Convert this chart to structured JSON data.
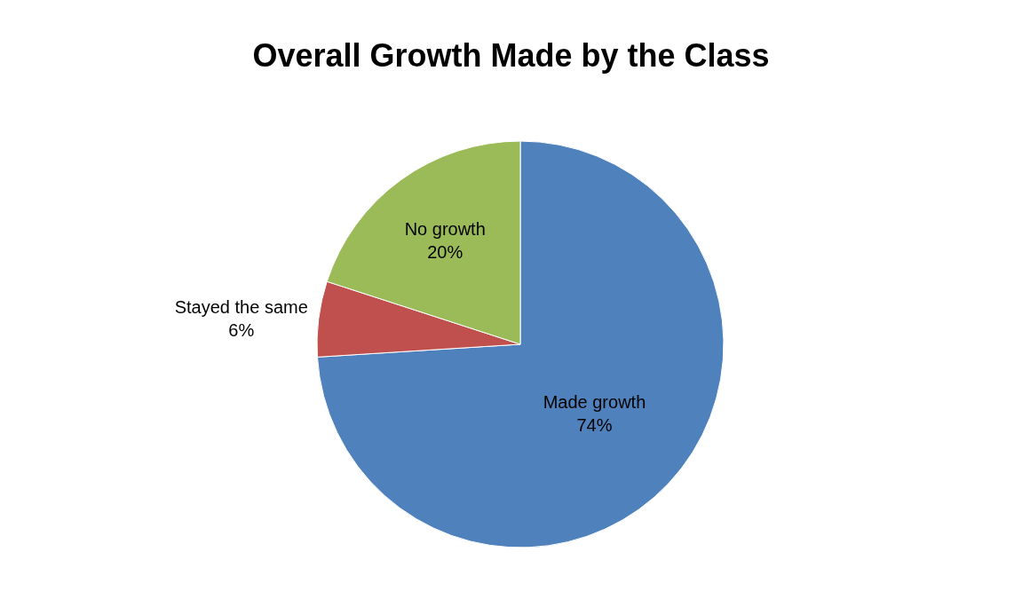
{
  "chart_data": {
    "type": "pie",
    "title": "Overall Growth Made by the Class",
    "categories": [
      "Made growth",
      "Stayed the same",
      "No growth"
    ],
    "values": [
      74,
      6,
      20
    ],
    "value_labels": [
      "74%",
      "6%",
      "20%"
    ],
    "colors": [
      "#4f81bd",
      "#c0504d",
      "#9bbb59"
    ],
    "legend": false
  }
}
